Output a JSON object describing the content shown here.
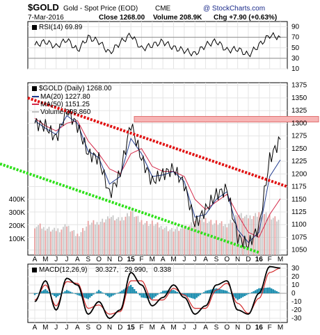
{
  "header": {
    "symbol": "$GOLD",
    "name": "Gold - Spot Price (EOD)",
    "exchange": "CME",
    "date": "7-Mar-2016",
    "close_label": "Close 1268.00",
    "volume_label": "Volume 208.9K",
    "chg_label": "Chg +7.90 (+0.63%)",
    "chg_arrow": "▲",
    "brand": "@ StockCharts.com"
  },
  "chart_data": [
    {
      "type": "line",
      "label": "RSI(14) 69.89",
      "ylim": [
        10,
        100
      ],
      "yticks": [
        90,
        70,
        50,
        30,
        10
      ],
      "reference_lines": [
        70,
        30
      ],
      "x": [
        "A",
        "M",
        "J",
        "J",
        "A",
        "S",
        "O",
        "N",
        "D",
        "15",
        "F",
        "M",
        "A",
        "M",
        "J",
        "J",
        "A",
        "S",
        "O",
        "N",
        "D",
        "16",
        "F",
        "M"
      ],
      "series": [
        {
          "values": [
            55,
            62,
            52,
            66,
            45,
            70,
            62,
            40,
            60,
            75,
            48,
            55,
            62,
            50,
            45,
            38,
            55,
            63,
            45,
            48,
            36,
            55,
            74,
            69.89
          ]
        }
      ]
    },
    {
      "type": "line",
      "label": "$GOLD (Daily) 1268.00",
      "ylim": [
        1040,
        1380
      ],
      "yticks": [
        1375,
        1350,
        1325,
        1300,
        1275,
        1250,
        1225,
        1200,
        1175,
        1150,
        1125,
        1100,
        1075,
        1050
      ],
      "x": [
        "A",
        "M",
        "J",
        "J",
        "A",
        "S",
        "O",
        "N",
        "D",
        "15",
        "F",
        "M",
        "A",
        "M",
        "J",
        "J",
        "A",
        "S",
        "O",
        "N",
        "D",
        "16",
        "F",
        "M"
      ],
      "legend": [
        {
          "name": "MA(20) 1227.80",
          "color": "#1f3a8f"
        },
        {
          "name": "MA(50) 1151.25",
          "color": "#d42a4a"
        },
        {
          "name": "Volume 208,860",
          "color": "#c0c0c0"
        }
      ],
      "series": [
        {
          "name": "$GOLD",
          "values": [
            1300,
            1295,
            1270,
            1325,
            1295,
            1240,
            1230,
            1160,
            1200,
            1300,
            1230,
            1185,
            1200,
            1210,
            1180,
            1100,
            1130,
            1160,
            1170,
            1075,
            1060,
            1095,
            1230,
            1268
          ]
        },
        {
          "name": "MA(20)",
          "values": [
            1305,
            1290,
            1278,
            1315,
            1300,
            1245,
            1232,
            1180,
            1195,
            1270,
            1240,
            1195,
            1198,
            1205,
            1185,
            1115,
            1120,
            1150,
            1165,
            1090,
            1065,
            1085,
            1195,
            1227.8
          ]
        },
        {
          "name": "MA(50)",
          "values": [
            1310,
            1295,
            1285,
            1300,
            1305,
            1265,
            1240,
            1210,
            1200,
            1240,
            1250,
            1215,
            1205,
            1205,
            1195,
            1150,
            1130,
            1145,
            1160,
            1120,
            1085,
            1075,
            1120,
            1151.25
          ]
        }
      ],
      "volume_axis": {
        "ticks": [
          "400K",
          "300K",
          "200K",
          "100K"
        ]
      },
      "volume": [
        180,
        160,
        150,
        170,
        120,
        190,
        200,
        230,
        210,
        260,
        200,
        190,
        170,
        150,
        160,
        200,
        210,
        190,
        180,
        240,
        220,
        250,
        230,
        208.86
      ],
      "annotations": [
        {
          "kind": "resistance-band",
          "y": 1308
        },
        {
          "kind": "trendline-upper-red",
          "from": {
            "x": "A",
            "y": 1350
          },
          "to": {
            "x": "M",
            "y": 1175
          }
        },
        {
          "kind": "trendline-lower-green",
          "from": {
            "x": "A",
            "y": 1220
          },
          "to": {
            "x": "16",
            "y": 1045
          }
        }
      ]
    },
    {
      "type": "line",
      "label": "MACD(12,26,9) 30.327, 29.990, 0.338",
      "legend": [
        {
          "name": "MACD(12,26,9)",
          "value": "30.327",
          "color": "#000000"
        },
        {
          "name": "signal",
          "value": "29.990",
          "color": "#d42a2a"
        },
        {
          "name": "histogram",
          "value": "0.338",
          "color": "#1f8fb0"
        }
      ],
      "ylim": [
        -35,
        35
      ],
      "yticks": [
        30,
        20,
        10,
        0,
        -10,
        -20,
        -30
      ],
      "x": [
        "A",
        "M",
        "J",
        "J",
        "A",
        "S",
        "O",
        "N",
        "D",
        "15",
        "F",
        "M",
        "A",
        "M",
        "J",
        "J",
        "A",
        "S",
        "O",
        "N",
        "D",
        "16",
        "F",
        "M"
      ],
      "series": [
        {
          "name": "MACD",
          "values": [
            -10,
            15,
            -20,
            18,
            10,
            -25,
            -10,
            -30,
            -20,
            25,
            10,
            -15,
            -5,
            10,
            -5,
            -25,
            -15,
            10,
            15,
            -20,
            -25,
            0,
            32,
            30.327
          ]
        },
        {
          "name": "Signal",
          "values": [
            -8,
            10,
            -15,
            14,
            12,
            -18,
            -14,
            -25,
            -22,
            15,
            15,
            -8,
            -8,
            6,
            -2,
            -18,
            -18,
            4,
            12,
            -12,
            -24,
            -6,
            25,
            29.99
          ]
        },
        {
          "name": "Histogram",
          "values": [
            -2,
            5,
            -5,
            4,
            -2,
            -7,
            4,
            -5,
            2,
            10,
            -5,
            -7,
            3,
            4,
            -3,
            -7,
            3,
            6,
            3,
            -8,
            -1,
            6,
            7,
            0.338
          ]
        }
      ]
    }
  ]
}
